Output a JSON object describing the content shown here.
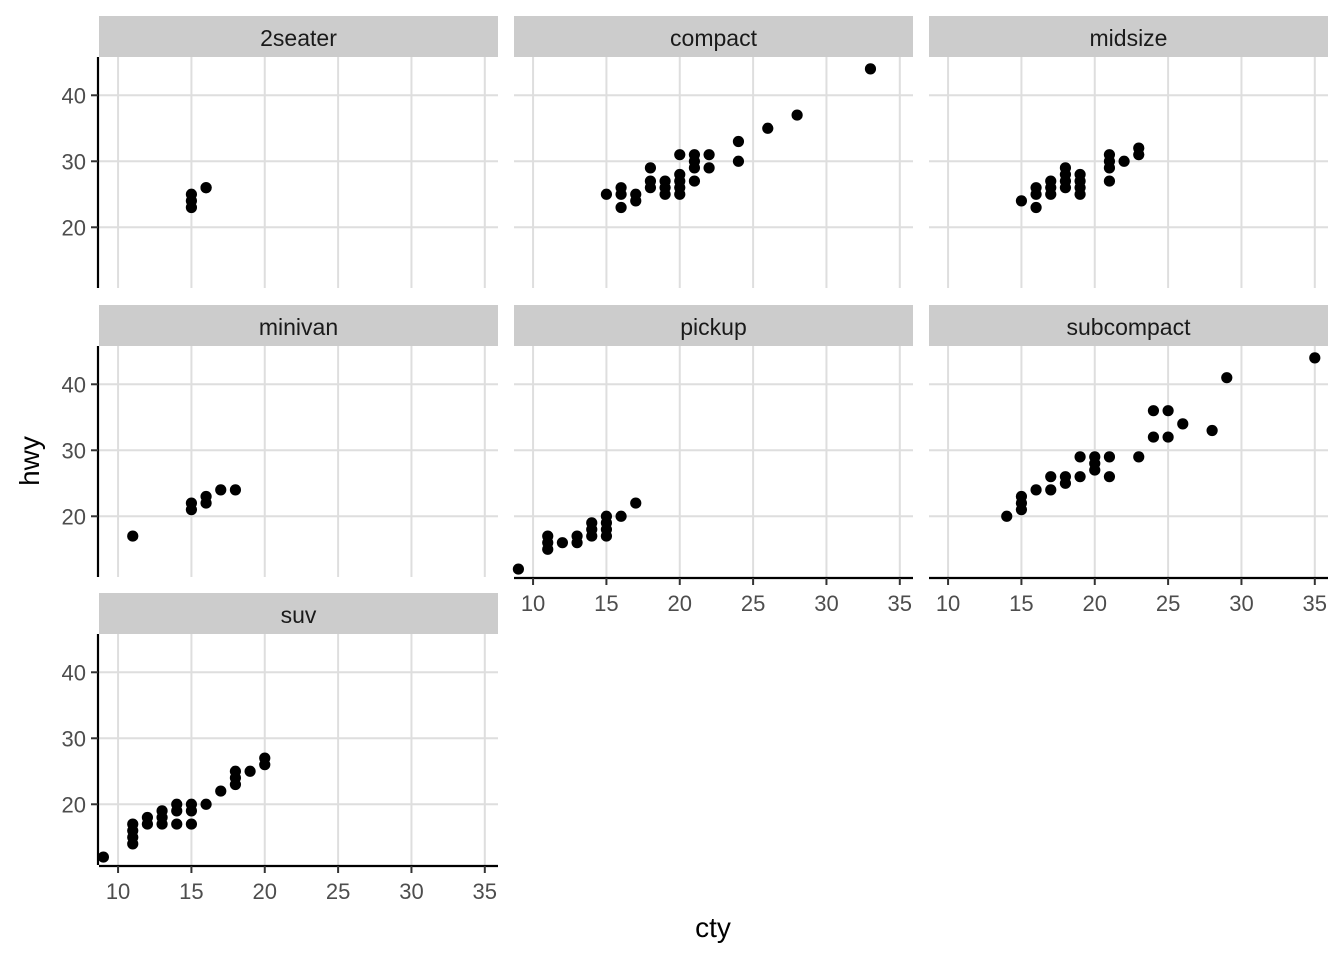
{
  "chart_data": {
    "type": "scatter",
    "xlabel": "cty",
    "ylabel": "hwy",
    "xlim": [
      8.7,
      35.9
    ],
    "ylim": [
      10.8,
      45.8
    ],
    "x_ticks": [
      10,
      15,
      20,
      25,
      30,
      35
    ],
    "y_ticks": [
      20,
      30,
      40
    ],
    "grid": true,
    "point_color": "#000000",
    "panels": [
      {
        "name": "2seater",
        "points": [
          [
            16,
            26
          ],
          [
            15,
            25
          ],
          [
            15,
            24
          ],
          [
            15,
            23
          ],
          [
            16,
            26
          ]
        ]
      },
      {
        "name": "compact",
        "points": [
          [
            15,
            25
          ],
          [
            16,
            26
          ],
          [
            16,
            23
          ],
          [
            16,
            25
          ],
          [
            17,
            25
          ],
          [
            17,
            24
          ],
          [
            18,
            29
          ],
          [
            18,
            27
          ],
          [
            18,
            26
          ],
          [
            19,
            27
          ],
          [
            19,
            26
          ],
          [
            19,
            25
          ],
          [
            20,
            31
          ],
          [
            20,
            28
          ],
          [
            20,
            27
          ],
          [
            20,
            26
          ],
          [
            20,
            25
          ],
          [
            21,
            31
          ],
          [
            21,
            30
          ],
          [
            21,
            29
          ],
          [
            21,
            27
          ],
          [
            22,
            31
          ],
          [
            22,
            29
          ],
          [
            24,
            33
          ],
          [
            24,
            30
          ],
          [
            26,
            35
          ],
          [
            28,
            37
          ],
          [
            33,
            44
          ]
        ]
      },
      {
        "name": "midsize",
        "points": [
          [
            15,
            24
          ],
          [
            16,
            26
          ],
          [
            16,
            25
          ],
          [
            16,
            23
          ],
          [
            17,
            27
          ],
          [
            17,
            26
          ],
          [
            17,
            25
          ],
          [
            18,
            29
          ],
          [
            18,
            28
          ],
          [
            18,
            27
          ],
          [
            18,
            26
          ],
          [
            19,
            28
          ],
          [
            19,
            27
          ],
          [
            19,
            26
          ],
          [
            19,
            25
          ],
          [
            21,
            31
          ],
          [
            21,
            30
          ],
          [
            21,
            29
          ],
          [
            21,
            27
          ],
          [
            22,
            30
          ],
          [
            23,
            32
          ],
          [
            23,
            31
          ]
        ]
      },
      {
        "name": "minivan",
        "points": [
          [
            11,
            17
          ],
          [
            15,
            22
          ],
          [
            15,
            21
          ],
          [
            16,
            23
          ],
          [
            16,
            22
          ],
          [
            17,
            24
          ],
          [
            18,
            24
          ]
        ]
      },
      {
        "name": "pickup",
        "points": [
          [
            9,
            12
          ],
          [
            11,
            17
          ],
          [
            11,
            16
          ],
          [
            11,
            15
          ],
          [
            12,
            16
          ],
          [
            13,
            17
          ],
          [
            13,
            16
          ],
          [
            14,
            19
          ],
          [
            14,
            18
          ],
          [
            14,
            17
          ],
          [
            15,
            20
          ],
          [
            15,
            19
          ],
          [
            15,
            18
          ],
          [
            15,
            17
          ],
          [
            16,
            20
          ],
          [
            17,
            22
          ]
        ]
      },
      {
        "name": "subcompact",
        "points": [
          [
            14,
            20
          ],
          [
            15,
            23
          ],
          [
            15,
            22
          ],
          [
            15,
            21
          ],
          [
            16,
            24
          ],
          [
            17,
            26
          ],
          [
            17,
            24
          ],
          [
            18,
            26
          ],
          [
            18,
            25
          ],
          [
            19,
            29
          ],
          [
            19,
            26
          ],
          [
            20,
            29
          ],
          [
            20,
            28
          ],
          [
            20,
            27
          ],
          [
            21,
            29
          ],
          [
            21,
            26
          ],
          [
            23,
            29
          ],
          [
            24,
            36
          ],
          [
            24,
            32
          ],
          [
            25,
            36
          ],
          [
            25,
            32
          ],
          [
            26,
            34
          ],
          [
            28,
            33
          ],
          [
            29,
            41
          ],
          [
            35,
            44
          ]
        ]
      },
      {
        "name": "suv",
        "points": [
          [
            9,
            12
          ],
          [
            11,
            17
          ],
          [
            11,
            16
          ],
          [
            11,
            15
          ],
          [
            11,
            14
          ],
          [
            12,
            18
          ],
          [
            12,
            17
          ],
          [
            13,
            19
          ],
          [
            13,
            18
          ],
          [
            13,
            17
          ],
          [
            14,
            20
          ],
          [
            14,
            19
          ],
          [
            14,
            17
          ],
          [
            15,
            20
          ],
          [
            15,
            19
          ],
          [
            15,
            17
          ],
          [
            16,
            20
          ],
          [
            17,
            22
          ],
          [
            18,
            25
          ],
          [
            18,
            24
          ],
          [
            18,
            23
          ],
          [
            19,
            25
          ],
          [
            20,
            27
          ],
          [
            20,
            26
          ]
        ]
      }
    ]
  }
}
